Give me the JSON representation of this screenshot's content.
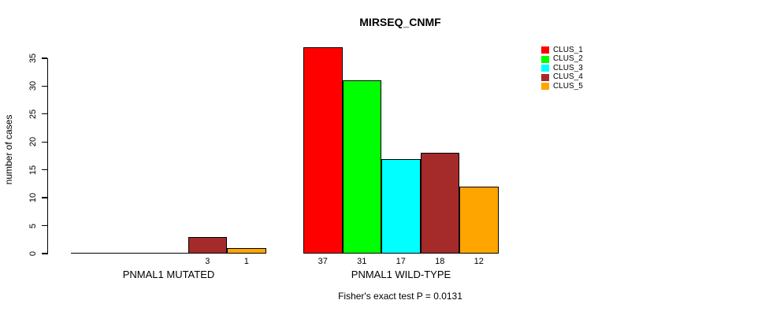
{
  "chart_data": {
    "type": "bar",
    "grouped": true,
    "title": "MIRSEQ_CNMF",
    "ylabel": "number of cases",
    "xlabel": "",
    "categories": [
      "PNMAL1 MUTATED",
      "PNMAL1 WILD-TYPE"
    ],
    "series": [
      {
        "name": "CLUS_1",
        "color": "#FF0000",
        "values": [
          0,
          37
        ]
      },
      {
        "name": "CLUS_2",
        "color": "#00FF00",
        "values": [
          0,
          31
        ]
      },
      {
        "name": "CLUS_3",
        "color": "#00FFFF",
        "values": [
          0,
          17
        ]
      },
      {
        "name": "CLUS_4",
        "color": "#A52A2A",
        "values": [
          3,
          18
        ]
      },
      {
        "name": "CLUS_5",
        "color": "#FFA500",
        "values": [
          1,
          12
        ]
      }
    ],
    "yticks": [
      0,
      5,
      10,
      15,
      20,
      25,
      30,
      35
    ],
    "ylim": [
      0,
      37
    ],
    "grid": false,
    "legend_position": "top-right",
    "value_labels": "shown below axis under each bar when value > 0",
    "footnote": "Fisher's exact test P = 0.0131"
  }
}
